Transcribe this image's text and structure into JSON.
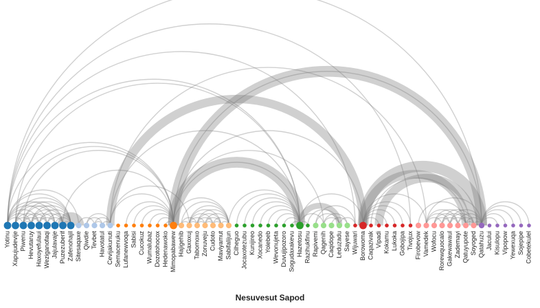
{
  "title": "Nesuvesut Sapod",
  "groups": {
    "g1": "#1f77b4",
    "g2": "#aec7e8",
    "g3": "#ff7f0e",
    "g4": "#ffbb78",
    "g5": "#2ca02c",
    "g6": "#98df8a",
    "g7": "#d62728",
    "g8": "#ff9896",
    "g9": "#9467bd"
  },
  "arc_color": "#777777",
  "nodes": [
    {
      "label": "Yotinu",
      "group": "g1",
      "degree": 3
    },
    {
      "label": "Xapujudevije",
      "group": "g1",
      "degree": 3
    },
    {
      "label": "Piwenu",
      "group": "g1",
      "degree": 3
    },
    {
      "label": "Hevutaruy",
      "group": "g1",
      "degree": 3
    },
    {
      "label": "Haxoyefulaui",
      "group": "g1",
      "degree": 3
    },
    {
      "label": "Weziganofaqi",
      "group": "g1",
      "degree": 3
    },
    {
      "label": "Jajulavaje",
      "group": "g1",
      "degree": 3
    },
    {
      "label": "Puzezuberif",
      "group": "g1",
      "degree": 3
    },
    {
      "label": "Zafenohajil",
      "group": "g1",
      "degree": 3
    },
    {
      "label": "Sitesaqaxe",
      "group": "g2",
      "degree": 2
    },
    {
      "label": "Qiwdie",
      "group": "g2",
      "degree": 2
    },
    {
      "label": "Tevbet",
      "group": "g2",
      "degree": 2
    },
    {
      "label": "Havotatul",
      "group": "g2",
      "degree": 2
    },
    {
      "label": "Cevijakunuti",
      "group": "g2",
      "degree": 2
    },
    {
      "label": "Semacenuku",
      "group": "g3",
      "degree": 1
    },
    {
      "label": "Lufanewvoqa",
      "group": "g3",
      "degree": 1
    },
    {
      "label": "Sabisi",
      "group": "g3",
      "degree": 1
    },
    {
      "label": "Cucokuz",
      "group": "g3",
      "degree": 1
    },
    {
      "label": "Wumalubaz",
      "group": "g3",
      "degree": 1
    },
    {
      "label": "Dozotohocox",
      "group": "g3",
      "degree": 1
    },
    {
      "label": "Hedenawoko",
      "group": "g3",
      "degree": 1
    },
    {
      "label": "Mimopabawew",
      "group": "g3",
      "degree": 3
    },
    {
      "label": "Hajigehib",
      "group": "g4",
      "degree": 2
    },
    {
      "label": "Gaxoxuj",
      "group": "g4",
      "degree": 2
    },
    {
      "label": "Tabomoxo",
      "group": "g4",
      "degree": 2
    },
    {
      "label": "Zonuveju",
      "group": "g4",
      "degree": 2
    },
    {
      "label": "Cudoto",
      "group": "g4",
      "degree": 2
    },
    {
      "label": "Maviyamut",
      "group": "g4",
      "degree": 2
    },
    {
      "label": "Sabifalijun",
      "group": "g4",
      "degree": 2
    },
    {
      "label": "Cilheguo",
      "group": "g5",
      "degree": 1
    },
    {
      "label": "Jocaxotezubu",
      "group": "g5",
      "degree": 1
    },
    {
      "label": "Kunijireo",
      "group": "g5",
      "degree": 1
    },
    {
      "label": "Xocanedo",
      "group": "g5",
      "degree": 1
    },
    {
      "label": "Yolebeb",
      "group": "g5",
      "degree": 1
    },
    {
      "label": "Wevonujeta",
      "group": "g5",
      "degree": 1
    },
    {
      "label": "Duvujipozoro",
      "group": "g5",
      "degree": 1
    },
    {
      "label": "Sogudaxakevu",
      "group": "g5",
      "degree": 1
    },
    {
      "label": "Hazetosu",
      "group": "g5",
      "degree": 3
    },
    {
      "label": "Razihukfinu",
      "group": "g5",
      "degree": 1
    },
    {
      "label": "Rapivemi",
      "group": "g6",
      "degree": 2
    },
    {
      "label": "Qagenih",
      "group": "g6",
      "degree": 2
    },
    {
      "label": "Caqidope",
      "group": "g6",
      "degree": 2
    },
    {
      "label": "Leduzadu",
      "group": "g6",
      "degree": 2
    },
    {
      "label": "Sayese",
      "group": "g6",
      "degree": 2
    },
    {
      "label": "Wijuwari",
      "group": "g7",
      "degree": 1
    },
    {
      "label": "Borowoma",
      "group": "g7",
      "degree": 3
    },
    {
      "label": "Caqazivak",
      "group": "g7",
      "degree": 1
    },
    {
      "label": "Vipadi",
      "group": "g7",
      "degree": 1
    },
    {
      "label": "Kokamu",
      "group": "g7",
      "degree": 1
    },
    {
      "label": "Lukoka",
      "group": "g7",
      "degree": 1
    },
    {
      "label": "Gobojipa",
      "group": "g7",
      "degree": 1
    },
    {
      "label": "Tivojux",
      "group": "g7",
      "degree": 1
    },
    {
      "label": "Firobevow",
      "group": "g8",
      "degree": 2
    },
    {
      "label": "Vamedek",
      "group": "g8",
      "degree": 2
    },
    {
      "label": "Wofocu",
      "group": "g8",
      "degree": 2
    },
    {
      "label": "Rorewquocalo",
      "group": "g8",
      "degree": 2
    },
    {
      "label": "Gakewawaul",
      "group": "g8",
      "degree": 2
    },
    {
      "label": "Zademayi",
      "group": "g8",
      "degree": 2
    },
    {
      "label": "Qatuyupote",
      "group": "g8",
      "degree": 2
    },
    {
      "label": "Soyoged",
      "group": "g8",
      "degree": 2
    },
    {
      "label": "Qatahuzu",
      "group": "g9",
      "degree": 2
    },
    {
      "label": "Jacului",
      "group": "g9",
      "degree": 1
    },
    {
      "label": "Kisulopu",
      "group": "g9",
      "degree": 1
    },
    {
      "label": "Vipopow",
      "group": "g9",
      "degree": 1
    },
    {
      "label": "Yewexuqa",
      "group": "g9",
      "degree": 1
    },
    {
      "label": "Sojepipe",
      "group": "g9",
      "degree": 1
    },
    {
      "label": "Cobetekulel",
      "group": "g9",
      "degree": 1
    }
  ],
  "links": [
    {
      "source": 0,
      "target": 60,
      "weight": 1
    },
    {
      "source": 0,
      "target": 44,
      "weight": 1
    },
    {
      "source": 0,
      "target": 37,
      "weight": 1
    },
    {
      "source": 0,
      "target": 21,
      "weight": 1
    },
    {
      "source": 0,
      "target": 9,
      "weight": 1
    },
    {
      "source": 1,
      "target": 37,
      "weight": 1
    },
    {
      "source": 1,
      "target": 21,
      "weight": 1
    },
    {
      "source": 2,
      "target": 21,
      "weight": 1
    },
    {
      "source": 7,
      "target": 21,
      "weight": 1
    },
    {
      "source": 0,
      "target": 8,
      "weight": 1
    },
    {
      "source": 1,
      "target": 8,
      "weight": 1
    },
    {
      "source": 2,
      "target": 8,
      "weight": 1
    },
    {
      "source": 3,
      "target": 8,
      "weight": 1
    },
    {
      "source": 0,
      "target": 6,
      "weight": 1
    },
    {
      "source": 1,
      "target": 6,
      "weight": 1
    },
    {
      "source": 1,
      "target": 7,
      "weight": 1
    },
    {
      "source": 2,
      "target": 7,
      "weight": 1
    },
    {
      "source": 0,
      "target": 5,
      "weight": 1
    },
    {
      "source": 2,
      "target": 5,
      "weight": 1
    },
    {
      "source": 3,
      "target": 7,
      "weight": 1
    },
    {
      "source": 4,
      "target": 8,
      "weight": 1
    },
    {
      "source": 5,
      "target": 8,
      "weight": 1
    },
    {
      "source": 6,
      "target": 8,
      "weight": 1
    },
    {
      "source": 0,
      "target": 4,
      "weight": 1
    },
    {
      "source": 1,
      "target": 4,
      "weight": 1
    },
    {
      "source": 2,
      "target": 4,
      "weight": 1
    },
    {
      "source": 3,
      "target": 5,
      "weight": 1
    },
    {
      "source": 4,
      "target": 6,
      "weight": 1
    },
    {
      "source": 5,
      "target": 7,
      "weight": 1
    },
    {
      "source": 0,
      "target": 3,
      "weight": 1
    },
    {
      "source": 1,
      "target": 3,
      "weight": 1
    },
    {
      "source": 3,
      "target": 6,
      "weight": 1
    },
    {
      "source": 4,
      "target": 7,
      "weight": 1
    },
    {
      "source": 0,
      "target": 2,
      "weight": 1
    },
    {
      "source": 2,
      "target": 3,
      "weight": 1
    },
    {
      "source": 7,
      "target": 8,
      "weight": 1
    },
    {
      "source": 7,
      "target": 9,
      "weight": 5
    },
    {
      "source": 10,
      "target": 13,
      "weight": 1
    },
    {
      "source": 11,
      "target": 13,
      "weight": 1
    },
    {
      "source": 10,
      "target": 12,
      "weight": 1
    },
    {
      "source": 11,
      "target": 12,
      "weight": 1
    },
    {
      "source": 12,
      "target": 13,
      "weight": 1
    },
    {
      "source": 9,
      "target": 11,
      "weight": 1
    },
    {
      "source": 13,
      "target": 45,
      "weight": 4
    },
    {
      "source": 13,
      "target": 37,
      "weight": 1
    },
    {
      "source": 13,
      "target": 21,
      "weight": 1
    },
    {
      "source": 13,
      "target": 23,
      "weight": 1
    },
    {
      "source": 15,
      "target": 21,
      "weight": 1
    },
    {
      "source": 16,
      "target": 21,
      "weight": 1
    },
    {
      "source": 17,
      "target": 21,
      "weight": 1
    },
    {
      "source": 18,
      "target": 21,
      "weight": 1
    },
    {
      "source": 19,
      "target": 21,
      "weight": 1
    },
    {
      "source": 20,
      "target": 21,
      "weight": 1
    },
    {
      "source": 21,
      "target": 60,
      "weight": 1
    },
    {
      "source": 21,
      "target": 45,
      "weight": 1
    },
    {
      "source": 21,
      "target": 37,
      "weight": 1
    },
    {
      "source": 21,
      "target": 40,
      "weight": 1
    },
    {
      "source": 21,
      "target": 28,
      "weight": 1
    },
    {
      "source": 21,
      "target": 60,
      "weight": 5
    },
    {
      "source": 21,
      "target": 37,
      "weight": 5
    },
    {
      "source": 23,
      "target": 24,
      "weight": 1
    },
    {
      "source": 23,
      "target": 25,
      "weight": 1
    },
    {
      "source": 23,
      "target": 26,
      "weight": 1
    },
    {
      "source": 23,
      "target": 27,
      "weight": 1
    },
    {
      "source": 23,
      "target": 28,
      "weight": 1
    },
    {
      "source": 24,
      "target": 25,
      "weight": 1
    },
    {
      "source": 24,
      "target": 26,
      "weight": 1
    },
    {
      "source": 24,
      "target": 27,
      "weight": 1
    },
    {
      "source": 24,
      "target": 28,
      "weight": 1
    },
    {
      "source": 25,
      "target": 26,
      "weight": 1
    },
    {
      "source": 25,
      "target": 27,
      "weight": 1
    },
    {
      "source": 25,
      "target": 28,
      "weight": 1
    },
    {
      "source": 26,
      "target": 27,
      "weight": 1
    },
    {
      "source": 26,
      "target": 28,
      "weight": 1
    },
    {
      "source": 27,
      "target": 28,
      "weight": 1
    },
    {
      "source": 22,
      "target": 23,
      "weight": 1
    },
    {
      "source": 22,
      "target": 24,
      "weight": 1
    },
    {
      "source": 22,
      "target": 28,
      "weight": 1
    },
    {
      "source": 28,
      "target": 37,
      "weight": 1
    },
    {
      "source": 29,
      "target": 37,
      "weight": 1
    },
    {
      "source": 30,
      "target": 37,
      "weight": 1
    },
    {
      "source": 31,
      "target": 37,
      "weight": 1
    },
    {
      "source": 32,
      "target": 37,
      "weight": 1
    },
    {
      "source": 33,
      "target": 37,
      "weight": 1
    },
    {
      "source": 34,
      "target": 37,
      "weight": 1
    },
    {
      "source": 35,
      "target": 37,
      "weight": 1
    },
    {
      "source": 36,
      "target": 37,
      "weight": 1
    },
    {
      "source": 37,
      "target": 38,
      "weight": 1
    },
    {
      "source": 37,
      "target": 40,
      "weight": 1
    },
    {
      "source": 37,
      "target": 42,
      "weight": 3
    },
    {
      "source": 37,
      "target": 45,
      "weight": 1
    },
    {
      "source": 38,
      "target": 42,
      "weight": 1
    },
    {
      "source": 39,
      "target": 42,
      "weight": 1
    },
    {
      "source": 40,
      "target": 42,
      "weight": 1
    },
    {
      "source": 40,
      "target": 43,
      "weight": 1
    },
    {
      "source": 41,
      "target": 43,
      "weight": 1
    },
    {
      "source": 39,
      "target": 44,
      "weight": 1
    },
    {
      "source": 42,
      "target": 44,
      "weight": 1
    },
    {
      "source": 45,
      "target": 60,
      "weight": 5
    },
    {
      "source": 45,
      "target": 47,
      "weight": 1
    },
    {
      "source": 45,
      "target": 48,
      "weight": 1
    },
    {
      "source": 45,
      "target": 49,
      "weight": 1
    },
    {
      "source": 45,
      "target": 50,
      "weight": 1
    },
    {
      "source": 45,
      "target": 51,
      "weight": 1
    },
    {
      "source": 45,
      "target": 53,
      "weight": 1
    },
    {
      "source": 45,
      "target": 58,
      "weight": 4
    },
    {
      "source": 46,
      "target": 58,
      "weight": 1
    },
    {
      "source": 47,
      "target": 59,
      "weight": 4
    },
    {
      "source": 52,
      "target": 58,
      "weight": 1
    },
    {
      "source": 53,
      "target": 60,
      "weight": 1
    },
    {
      "source": 53,
      "target": 55,
      "weight": 1
    },
    {
      "source": 53,
      "target": 56,
      "weight": 1
    },
    {
      "source": 53,
      "target": 57,
      "weight": 1
    },
    {
      "source": 54,
      "target": 56,
      "weight": 1
    },
    {
      "source": 54,
      "target": 57,
      "weight": 1
    },
    {
      "source": 54,
      "target": 58,
      "weight": 1
    },
    {
      "source": 55,
      "target": 57,
      "weight": 1
    },
    {
      "source": 55,
      "target": 58,
      "weight": 1
    },
    {
      "source": 55,
      "target": 59,
      "weight": 1
    },
    {
      "source": 56,
      "target": 58,
      "weight": 1
    },
    {
      "source": 56,
      "target": 59,
      "weight": 1
    },
    {
      "source": 57,
      "target": 59,
      "weight": 1
    },
    {
      "source": 58,
      "target": 59,
      "weight": 1
    },
    {
      "source": 56,
      "target": 60,
      "weight": 1
    },
    {
      "source": 57,
      "target": 60,
      "weight": 1
    },
    {
      "source": 58,
      "target": 60,
      "weight": 1
    },
    {
      "source": 59,
      "target": 60,
      "weight": 1
    },
    {
      "source": 60,
      "target": 62,
      "weight": 1
    },
    {
      "source": 60,
      "target": 63,
      "weight": 1
    },
    {
      "source": 60,
      "target": 64,
      "weight": 1
    },
    {
      "source": 60,
      "target": 65,
      "weight": 1
    },
    {
      "source": 60,
      "target": 66,
      "weight": 1
    },
    {
      "source": 0,
      "target": 51,
      "weight": 1
    },
    {
      "source": 13,
      "target": 53,
      "weight": 1
    }
  ]
}
